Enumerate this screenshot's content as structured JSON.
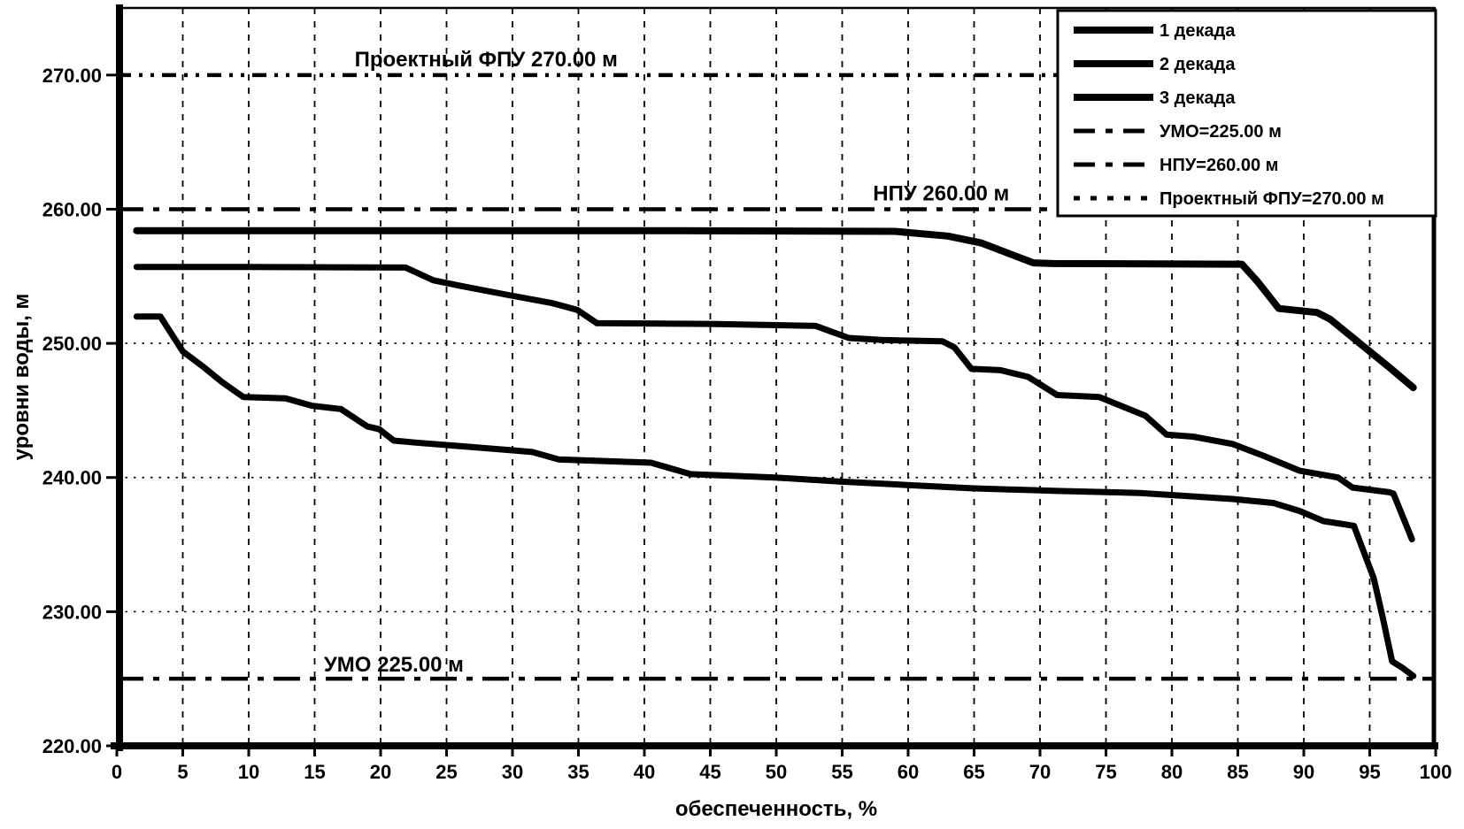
{
  "figure": {
    "background": "#ffffff",
    "foreground": "#000000"
  },
  "chart_data": {
    "type": "line",
    "title": "",
    "xlabel": "обеспеченность, %",
    "ylabel": "уровни воды, м",
    "xlim": [
      0,
      100
    ],
    "x_tick_step": 5,
    "ylim": [
      220,
      275
    ],
    "y_ticks": [
      {
        "value": 220,
        "label": "220.00"
      },
      {
        "value": 230,
        "label": "230.00"
      },
      {
        "value": 240,
        "label": "240.00"
      },
      {
        "value": 250,
        "label": "250.00"
      },
      {
        "value": 260,
        "label": "260.00"
      },
      {
        "value": 270,
        "label": "270.00"
      }
    ],
    "grid": {
      "vertical_step": 5,
      "horizontal_dotted_values": [
        230,
        240,
        250
      ]
    },
    "series": [
      {
        "name": "1 декада",
        "style": "solid",
        "points": [
          [
            1.5,
            258.4
          ],
          [
            20,
            258.4
          ],
          [
            40,
            258.4
          ],
          [
            59,
            258.35
          ],
          [
            63,
            258.0
          ],
          [
            65.5,
            257.5
          ],
          [
            69.5,
            256.0
          ],
          [
            71,
            255.95
          ],
          [
            85.3,
            255.9
          ],
          [
            86.5,
            254.6
          ],
          [
            88.1,
            252.6
          ],
          [
            91,
            252.3
          ],
          [
            92,
            251.8
          ],
          [
            94.5,
            249.8
          ],
          [
            96.5,
            248.2
          ],
          [
            98.3,
            246.7
          ]
        ]
      },
      {
        "name": "2 декада",
        "style": "solid",
        "points": [
          [
            1.5,
            255.7
          ],
          [
            10,
            255.7
          ],
          [
            21.9,
            255.65
          ],
          [
            24,
            254.7
          ],
          [
            26,
            254.3
          ],
          [
            29.7,
            253.6
          ],
          [
            33,
            253.0
          ],
          [
            34.9,
            252.5
          ],
          [
            36.4,
            251.5
          ],
          [
            45,
            251.45
          ],
          [
            53,
            251.3
          ],
          [
            55.5,
            250.4
          ],
          [
            58,
            250.25
          ],
          [
            62.6,
            250.15
          ],
          [
            63.5,
            249.7
          ],
          [
            64.8,
            248.1
          ],
          [
            67,
            248.0
          ],
          [
            69.1,
            247.5
          ],
          [
            71.3,
            246.15
          ],
          [
            74.5,
            246.0
          ],
          [
            78,
            244.6
          ],
          [
            79.6,
            243.2
          ],
          [
            81.6,
            243.05
          ],
          [
            84.6,
            242.5
          ],
          [
            87,
            241.6
          ],
          [
            89.7,
            240.5
          ],
          [
            92.6,
            240.0
          ],
          [
            93.7,
            239.25
          ],
          [
            96.5,
            238.9
          ],
          [
            96.8,
            238.8
          ],
          [
            98.2,
            235.4
          ]
        ]
      },
      {
        "name": "3 декада",
        "style": "solid",
        "points": [
          [
            1.5,
            252.0
          ],
          [
            3.3,
            252.0
          ],
          [
            5,
            249.4
          ],
          [
            6.5,
            248.3
          ],
          [
            8,
            247.1
          ],
          [
            9.3,
            246.2
          ],
          [
            9.6,
            246.0
          ],
          [
            12.8,
            245.9
          ],
          [
            14.8,
            245.35
          ],
          [
            17,
            245.1
          ],
          [
            19,
            243.8
          ],
          [
            19.9,
            243.6
          ],
          [
            21,
            242.75
          ],
          [
            22.7,
            242.6
          ],
          [
            29.7,
            242.05
          ],
          [
            31.5,
            241.9
          ],
          [
            33.5,
            241.35
          ],
          [
            40.5,
            241.1
          ],
          [
            43.5,
            240.25
          ],
          [
            49.9,
            240.0
          ],
          [
            54.8,
            239.7
          ],
          [
            59.8,
            239.45
          ],
          [
            64.8,
            239.2
          ],
          [
            71.3,
            239.0
          ],
          [
            77.6,
            238.85
          ],
          [
            84.6,
            238.4
          ],
          [
            87.7,
            238.1
          ],
          [
            89.7,
            237.5
          ],
          [
            91.5,
            236.75
          ],
          [
            93.8,
            236.4
          ],
          [
            95.3,
            232.5
          ],
          [
            96,
            229.5
          ],
          [
            96.7,
            226.3
          ],
          [
            97.5,
            225.8
          ],
          [
            98.3,
            225.2
          ]
        ]
      }
    ],
    "reference_lines": [
      {
        "name": "УМО=225.00 м",
        "value": 225,
        "style": "dash-dot"
      },
      {
        "name": "НПУ=260.00 м",
        "value": 260,
        "style": "dash-dot"
      },
      {
        "name": "Проектный ФПУ=270.00 м",
        "value": 270,
        "style": "dash-dot-dot"
      }
    ],
    "annotations": [
      {
        "text": "Проектный ФПУ 270.00 м",
        "x": 28,
        "y": 270,
        "offset_y": -10
      },
      {
        "text": "НПУ 260.00 м",
        "x": 62.5,
        "y": 260,
        "offset_y": -10
      },
      {
        "text": "УМО 225.00 м",
        "x": 21,
        "y": 225,
        "offset_y": -8
      }
    ],
    "legend": {
      "position": "top-right",
      "entries": [
        {
          "label": "1 декада",
          "sample": "solid-thick"
        },
        {
          "label": "2 декада",
          "sample": "solid-thick"
        },
        {
          "label": "3 декада",
          "sample": "solid-thick"
        },
        {
          "label": "УМО=225.00 м",
          "sample": "dash-dot"
        },
        {
          "label": "НПУ=260.00 м",
          "sample": "dash-dot"
        },
        {
          "label": "Проектный ФПУ=270.00 м",
          "sample": "dotted"
        }
      ]
    }
  }
}
